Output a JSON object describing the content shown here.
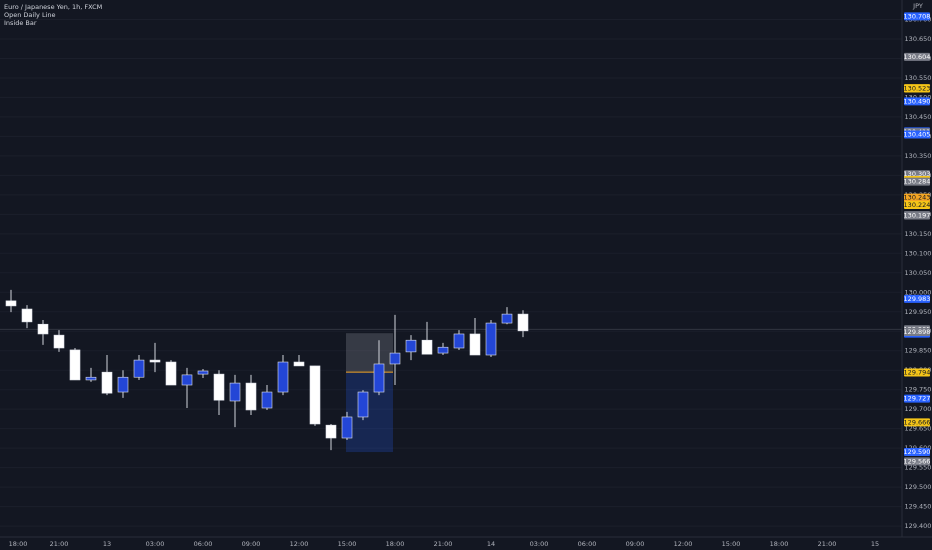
{
  "chart_data": {
    "type": "candlestick",
    "title": "Euro / Japanese Yen, 1h, FXCM",
    "indicators": [
      "Open Daily Line",
      "Inside Bar"
    ],
    "currency": "JPY",
    "open": [
      129.978,
      129.957,
      129.918,
      129.89,
      129.852,
      129.775,
      129.795,
      129.744,
      129.782,
      129.826,
      129.821,
      129.762,
      129.79,
      129.79,
      129.721,
      129.767,
      129.703,
      129.744,
      129.821,
      129.811,
      129.659,
      129.626,
      129.68,
      129.744,
      129.816,
      129.847,
      129.877,
      129.844,
      129.857,
      129.893,
      129.839,
      129.921,
      129.944
    ],
    "high": [
      130.006,
      129.967,
      129.929,
      129.903,
      129.857,
      129.806,
      129.839,
      129.8,
      129.839,
      129.87,
      129.826,
      129.806,
      129.803,
      129.8,
      129.788,
      129.788,
      129.762,
      129.839,
      129.839,
      129.811,
      129.662,
      129.693,
      129.749,
      129.877,
      129.942,
      129.89,
      129.924,
      129.87,
      129.903,
      129.934,
      129.929,
      129.962,
      129.954
    ],
    "low": [
      129.949,
      129.908,
      129.865,
      129.847,
      129.775,
      129.77,
      129.736,
      129.729,
      129.775,
      129.795,
      129.762,
      129.703,
      129.78,
      129.685,
      129.654,
      129.685,
      129.698,
      129.736,
      129.811,
      129.657,
      129.595,
      129.621,
      129.672,
      129.736,
      129.762,
      129.826,
      129.841,
      129.839,
      129.852,
      129.839,
      129.834,
      129.918,
      129.885
    ],
    "close": [
      129.965,
      129.924,
      129.893,
      129.857,
      129.775,
      129.782,
      129.741,
      129.782,
      129.826,
      129.821,
      129.762,
      129.788,
      129.798,
      129.723,
      129.767,
      129.698,
      129.744,
      129.821,
      129.811,
      129.662,
      129.626,
      129.68,
      129.744,
      129.816,
      129.844,
      129.877,
      129.841,
      129.859,
      129.893,
      129.839,
      129.921,
      129.944,
      129.901
    ],
    "up_color": "#2346d6",
    "down_color": "#ffffff",
    "open_daily_line": 129.795,
    "open_daily_color": "#f5a623",
    "inside_bar_box": {
      "high": 129.895,
      "low": 129.59
    },
    "price_line": 129.905,
    "ylim": [
      129.372,
      130.75
    ],
    "yticks": [
      {
        "value": 129.4,
        "label": "129.400"
      },
      {
        "value": 129.45,
        "label": "129.450"
      },
      {
        "value": 129.5,
        "label": "129.500"
      },
      {
        "value": 129.55,
        "label": "129.550"
      },
      {
        "value": 129.6,
        "label": "129.600"
      },
      {
        "value": 129.65,
        "label": "129.650"
      },
      {
        "value": 129.7,
        "label": "129.700"
      },
      {
        "value": 129.75,
        "label": "129.750"
      },
      {
        "value": 129.8,
        "label": "129.800"
      },
      {
        "value": 129.85,
        "label": "129.850"
      },
      {
        "value": 129.9,
        "label": "129.900"
      },
      {
        "value": 129.95,
        "label": "129.950"
      },
      {
        "value": 130.0,
        "label": "130.000"
      },
      {
        "value": 130.05,
        "label": "130.050"
      },
      {
        "value": 130.1,
        "label": "130.100"
      },
      {
        "value": 130.15,
        "label": "130.150"
      },
      {
        "value": 130.2,
        "label": "130.200"
      },
      {
        "value": 130.25,
        "label": "130.250"
      },
      {
        "value": 130.3,
        "label": "130.300"
      },
      {
        "value": 130.35,
        "label": "130.350"
      },
      {
        "value": 130.4,
        "label": "130.400"
      },
      {
        "value": 130.45,
        "label": "130.450"
      },
      {
        "value": 130.5,
        "label": "130.500"
      },
      {
        "value": 130.55,
        "label": "130.550"
      },
      {
        "value": 130.6,
        "label": "130.600"
      },
      {
        "value": 130.65,
        "label": "130.650"
      },
      {
        "value": 130.7,
        "label": "130.700"
      }
    ],
    "xticks": [
      "18:00",
      "21:00",
      "13",
      "03:00",
      "06:00",
      "09:00",
      "12:00",
      "15:00",
      "18:00",
      "21:00",
      "14",
      "03:00",
      "06:00",
      "09:00",
      "12:00",
      "15:00",
      "18:00",
      "21:00",
      "15"
    ],
    "price_tags": [
      {
        "value": 130.708,
        "label": "130.708",
        "color": "#2962ff"
      },
      {
        "value": 130.604,
        "label": "130.604",
        "color": "#787b86"
      },
      {
        "value": 130.524,
        "label": "130.524",
        "color": "#f5c518"
      },
      {
        "value": 130.523,
        "label": "130.523",
        "color": "#f5c518"
      },
      {
        "value": 130.49,
        "label": "130.490",
        "color": "#2962ff"
      },
      {
        "value": 130.413,
        "label": "130.413",
        "color": "#2962ff"
      },
      {
        "value": 130.411,
        "label": "130.411",
        "color": "#787b86"
      },
      {
        "value": 130.405,
        "label": "130.405",
        "color": "#2962ff"
      },
      {
        "value": 130.303,
        "label": "130.303",
        "color": "#787b86"
      },
      {
        "value": 130.288,
        "label": "130.288",
        "color": "#f5c518"
      },
      {
        "value": 130.287,
        "label": "130.287",
        "color": "#f5c518"
      },
      {
        "value": 130.284,
        "label": "130.284",
        "color": "#787b86"
      },
      {
        "value": 130.243,
        "label": "130.243",
        "color": "#f5a623"
      },
      {
        "value": 130.224,
        "label": "130.224",
        "color": "#f5c518"
      },
      {
        "value": 130.198,
        "label": "130.198",
        "color": "#787b86"
      },
      {
        "value": 130.197,
        "label": "130.197",
        "color": "#787b86"
      },
      {
        "value": 129.983,
        "label": "129.983",
        "color": "#2962ff"
      },
      {
        "value": 129.905,
        "label": "129.905",
        "color": "#787b86"
      },
      {
        "value": 129.894,
        "label": "129.894",
        "color": "#2962ff"
      },
      {
        "value": 129.898,
        "label": "129.898",
        "color": "#787b86"
      },
      {
        "value": 129.794,
        "label": "129.794",
        "color": "#f5c518"
      },
      {
        "value": 129.727,
        "label": "129.727",
        "color": "#2962ff"
      },
      {
        "value": 129.666,
        "label": "129.666",
        "color": "#f5c518"
      },
      {
        "value": 129.59,
        "label": "129.590",
        "color": "#2962ff"
      },
      {
        "value": 129.566,
        "label": "129.566",
        "color": "#787b86"
      }
    ]
  }
}
